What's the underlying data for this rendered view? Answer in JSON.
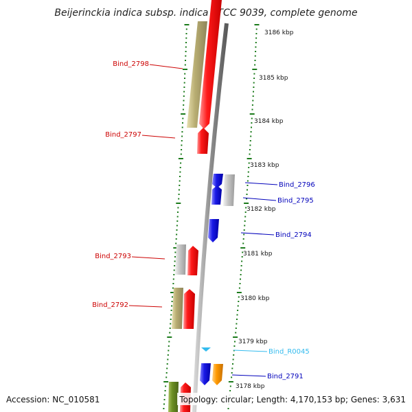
{
  "title": "Beijerinckia indica subsp. indica ATCC 9039, complete genome",
  "footer": {
    "accession": "Accession: NC_010581",
    "summary": "Topology: circular; Length: 4,170,153 bp; Genes: 3,631"
  },
  "colors": {
    "backbone": "#8f8f8f",
    "tick_outer": "#1a7a1a",
    "tick_inner": "#1a7a1a",
    "red_gene": "#ff1a1a",
    "khaki_gene": "#b8ad72",
    "grey_gene": "#c8c8c8",
    "blue_gene": "#1a1ae6",
    "orange_gene": "#ff9900",
    "olive_gene": "#6b8e23",
    "rna_gene": "#33bbee",
    "left_label": "#cc0000",
    "right_label": "#0000bb",
    "rna_label": "#33bbee"
  },
  "scale_labels": [
    "3186 kbp",
    "3185 kbp",
    "3184 kbp",
    "3183 kbp",
    "3182 kbp",
    "3181 kbp",
    "3180 kbp",
    "3179 kbp",
    "3178 kbp"
  ],
  "gene_labels_left": [
    {
      "name": "Bind_2798"
    },
    {
      "name": "Bind_2797"
    },
    {
      "name": "Bind_2793"
    },
    {
      "name": "Bind_2792"
    }
  ],
  "gene_labels_right": [
    {
      "name": "Bind_2796",
      "kind": "protein"
    },
    {
      "name": "Bind_2795",
      "kind": "protein"
    },
    {
      "name": "Bind_2794",
      "kind": "protein"
    },
    {
      "name": "Bind_R0045",
      "kind": "rna"
    },
    {
      "name": "Bind_2791",
      "kind": "protein"
    }
  ]
}
